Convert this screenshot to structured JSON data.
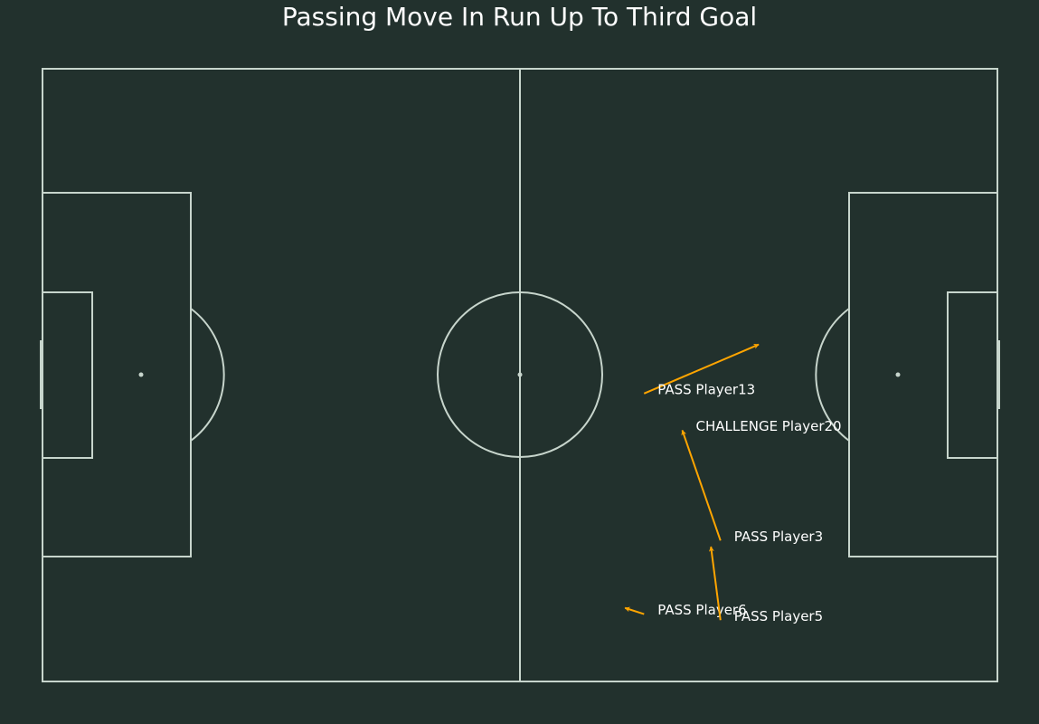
{
  "chart_data": {
    "type": "scatter",
    "title": "Passing Move In Run Up To Third Goal",
    "pitch": {
      "length": 100,
      "width": 100,
      "line_color": "#c7d5cc",
      "background": "#22312d"
    },
    "arrow_color": "#ffa500",
    "label_color": "#ffffff",
    "events": [
      {
        "label": "PASS Player6",
        "x": 63,
        "y": 89,
        "end_x": 61,
        "end_y": 88
      },
      {
        "label": "PASS Player5",
        "x": 71,
        "y": 90,
        "end_x": 70,
        "end_y": 78
      },
      {
        "label": "PASS Player3",
        "x": 71,
        "y": 77,
        "end_x": 67,
        "end_y": 59
      },
      {
        "label": "CHALLENGE Player20",
        "x": 67,
        "y": 59
      },
      {
        "label": "PASS Player13",
        "x": 63,
        "y": 53,
        "end_x": 75,
        "end_y": 45
      }
    ]
  }
}
